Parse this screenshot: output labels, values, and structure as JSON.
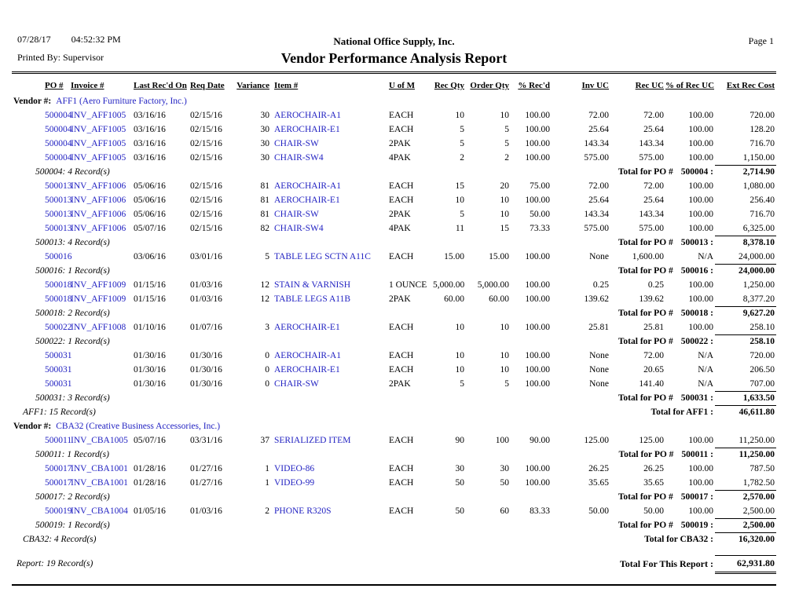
{
  "meta": {
    "date": "07/28/17",
    "time": "04:52:32 PM",
    "printed_by": "Printed By: Supervisor",
    "company": "National Office Supply, Inc.",
    "title": "Vendor Performance Analysis Report",
    "page": "Page 1"
  },
  "colors": {
    "link_blue": "#2222c2",
    "text": "#000000",
    "rule": "#000000"
  },
  "columns": [
    "PO #",
    "Invoice #",
    "Last Rec'd On",
    "Req Date",
    "Variance",
    "Item #",
    "U of M",
    "Rec Qty",
    "Order Qty",
    "% Rec'd",
    "Inv UC",
    "Rec UC",
    "% of Rec UC",
    "Ext Rec Cost"
  ],
  "rows": [
    {
      "type": "vendor",
      "label": "Vendor #:",
      "name": "AFF1 (Aero Furniture Factory, Inc.)"
    },
    {
      "type": "detail",
      "po": "500004",
      "invoice": "INV_AFF1005",
      "last_recd": "03/16/16",
      "req_date": "02/15/16",
      "variance": "30",
      "item": "AEROCHAIR-A1",
      "uom": "EACH",
      "rec_qty": "10",
      "order_qty": "10",
      "pct_recd": "100.00",
      "inv_uc": "72.00",
      "rec_uc": "72.00",
      "pct_rec_uc": "100.00",
      "ext": "720.00"
    },
    {
      "type": "detail",
      "po": "500004",
      "invoice": "INV_AFF1005",
      "last_recd": "03/16/16",
      "req_date": "02/15/16",
      "variance": "30",
      "item": "AEROCHAIR-E1",
      "uom": "EACH",
      "rec_qty": "5",
      "order_qty": "5",
      "pct_recd": "100.00",
      "inv_uc": "25.64",
      "rec_uc": "25.64",
      "pct_rec_uc": "100.00",
      "ext": "128.20"
    },
    {
      "type": "detail",
      "po": "500004",
      "invoice": "INV_AFF1005",
      "last_recd": "03/16/16",
      "req_date": "02/15/16",
      "variance": "30",
      "item": "CHAIR-SW",
      "uom": "2PAK",
      "rec_qty": "5",
      "order_qty": "5",
      "pct_recd": "100.00",
      "inv_uc": "143.34",
      "rec_uc": "143.34",
      "pct_rec_uc": "100.00",
      "ext": "716.70"
    },
    {
      "type": "detail",
      "po": "500004",
      "invoice": "INV_AFF1005",
      "last_recd": "03/16/16",
      "req_date": "02/15/16",
      "variance": "30",
      "item": "CHAIR-SW4",
      "uom": "4PAK",
      "rec_qty": "2",
      "order_qty": "2",
      "pct_recd": "100.00",
      "inv_uc": "575.00",
      "rec_uc": "575.00",
      "pct_rec_uc": "100.00",
      "ext": "1,150.00"
    },
    {
      "type": "po_total",
      "records": "500004: 4 Record(s)",
      "label": "Total for PO #",
      "po": "500004 :",
      "total": "2,714.90"
    },
    {
      "type": "detail",
      "po": "500013",
      "invoice": "INV_AFF1006",
      "last_recd": "05/06/16",
      "req_date": "02/15/16",
      "variance": "81",
      "item": "AEROCHAIR-A1",
      "uom": "EACH",
      "rec_qty": "15",
      "order_qty": "20",
      "pct_recd": "75.00",
      "inv_uc": "72.00",
      "rec_uc": "72.00",
      "pct_rec_uc": "100.00",
      "ext": "1,080.00"
    },
    {
      "type": "detail",
      "po": "500013",
      "invoice": "INV_AFF1006",
      "last_recd": "05/06/16",
      "req_date": "02/15/16",
      "variance": "81",
      "item": "AEROCHAIR-E1",
      "uom": "EACH",
      "rec_qty": "10",
      "order_qty": "10",
      "pct_recd": "100.00",
      "inv_uc": "25.64",
      "rec_uc": "25.64",
      "pct_rec_uc": "100.00",
      "ext": "256.40"
    },
    {
      "type": "detail",
      "po": "500013",
      "invoice": "INV_AFF1006",
      "last_recd": "05/06/16",
      "req_date": "02/15/16",
      "variance": "81",
      "item": "CHAIR-SW",
      "uom": "2PAK",
      "rec_qty": "5",
      "order_qty": "10",
      "pct_recd": "50.00",
      "inv_uc": "143.34",
      "rec_uc": "143.34",
      "pct_rec_uc": "100.00",
      "ext": "716.70"
    },
    {
      "type": "detail",
      "po": "500013",
      "invoice": "INV_AFF1006",
      "last_recd": "05/07/16",
      "req_date": "02/15/16",
      "variance": "82",
      "item": "CHAIR-SW4",
      "uom": "4PAK",
      "rec_qty": "11",
      "order_qty": "15",
      "pct_recd": "73.33",
      "inv_uc": "575.00",
      "rec_uc": "575.00",
      "pct_rec_uc": "100.00",
      "ext": "6,325.00"
    },
    {
      "type": "po_total",
      "records": "500013: 4 Record(s)",
      "label": "Total for PO #",
      "po": "500013 :",
      "total": "8,378.10"
    },
    {
      "type": "detail",
      "po": "500016",
      "invoice": "",
      "last_recd": "03/06/16",
      "req_date": "03/01/16",
      "variance": "5",
      "item": "TABLE LEG SCTN A11C",
      "uom": "EACH",
      "rec_qty": "15.00",
      "order_qty": "15.00",
      "pct_recd": "100.00",
      "inv_uc": "None",
      "rec_uc": "1,600.00",
      "pct_rec_uc": "N/A",
      "ext": "24,000.00"
    },
    {
      "type": "po_total",
      "records": "500016: 1 Record(s)",
      "label": "Total for PO #",
      "po": "500016 :",
      "total": "24,000.00"
    },
    {
      "type": "detail",
      "po": "500018",
      "invoice": "INV_AFF1009",
      "last_recd": "01/15/16",
      "req_date": "01/03/16",
      "variance": "12",
      "item": "STAIN & VARNISH",
      "uom": "1 OUNCE",
      "rec_qty": "5,000.00",
      "order_qty": "5,000.00",
      "pct_recd": "100.00",
      "inv_uc": "0.25",
      "rec_uc": "0.25",
      "pct_rec_uc": "100.00",
      "ext": "1,250.00"
    },
    {
      "type": "detail",
      "po": "500018",
      "invoice": "INV_AFF1009",
      "last_recd": "01/15/16",
      "req_date": "01/03/16",
      "variance": "12",
      "item": "TABLE LEGS A11B",
      "uom": "2PAK",
      "rec_qty": "60.00",
      "order_qty": "60.00",
      "pct_recd": "100.00",
      "inv_uc": "139.62",
      "rec_uc": "139.62",
      "pct_rec_uc": "100.00",
      "ext": "8,377.20"
    },
    {
      "type": "po_total",
      "records": "500018: 2 Record(s)",
      "label": "Total for PO #",
      "po": "500018 :",
      "total": "9,627.20"
    },
    {
      "type": "detail",
      "po": "500022",
      "invoice": "INV_AFF1008",
      "last_recd": "01/10/16",
      "req_date": "01/07/16",
      "variance": "3",
      "item": "AEROCHAIR-E1",
      "uom": "EACH",
      "rec_qty": "10",
      "order_qty": "10",
      "pct_recd": "100.00",
      "inv_uc": "25.81",
      "rec_uc": "25.81",
      "pct_rec_uc": "100.00",
      "ext": "258.10"
    },
    {
      "type": "po_total",
      "records": "500022: 1 Record(s)",
      "label": "Total for PO #",
      "po": "500022 :",
      "total": "258.10"
    },
    {
      "type": "detail",
      "po": "500031",
      "invoice": "",
      "last_recd": "01/30/16",
      "req_date": "01/30/16",
      "variance": "0",
      "item": "AEROCHAIR-A1",
      "uom": "EACH",
      "rec_qty": "10",
      "order_qty": "10",
      "pct_recd": "100.00",
      "inv_uc": "None",
      "rec_uc": "72.00",
      "pct_rec_uc": "N/A",
      "ext": "720.00"
    },
    {
      "type": "detail",
      "po": "500031",
      "invoice": "",
      "last_recd": "01/30/16",
      "req_date": "01/30/16",
      "variance": "0",
      "item": "AEROCHAIR-E1",
      "uom": "EACH",
      "rec_qty": "10",
      "order_qty": "10",
      "pct_recd": "100.00",
      "inv_uc": "None",
      "rec_uc": "20.65",
      "pct_rec_uc": "N/A",
      "ext": "206.50"
    },
    {
      "type": "detail",
      "po": "500031",
      "invoice": "",
      "last_recd": "01/30/16",
      "req_date": "01/30/16",
      "variance": "0",
      "item": "CHAIR-SW",
      "uom": "2PAK",
      "rec_qty": "5",
      "order_qty": "5",
      "pct_recd": "100.00",
      "inv_uc": "None",
      "rec_uc": "141.40",
      "pct_rec_uc": "N/A",
      "ext": "707.00"
    },
    {
      "type": "po_total",
      "records": "500031: 3 Record(s)",
      "label": "Total for PO #",
      "po": "500031 :",
      "total": "1,633.50"
    },
    {
      "type": "vendor_total",
      "records": "AFF1: 15 Record(s)",
      "label": "Total for AFF1 :",
      "total": "46,611.80"
    },
    {
      "type": "vendor",
      "label": "Vendor #:",
      "name": "CBA32 (Creative Business Accessories, Inc.)"
    },
    {
      "type": "detail",
      "po": "500011",
      "invoice": "INV_CBA1005",
      "last_recd": "05/07/16",
      "req_date": "03/31/16",
      "variance": "37",
      "item": "SERIALIZED ITEM",
      "uom": "EACH",
      "rec_qty": "90",
      "order_qty": "100",
      "pct_recd": "90.00",
      "inv_uc": "125.00",
      "rec_uc": "125.00",
      "pct_rec_uc": "100.00",
      "ext": "11,250.00"
    },
    {
      "type": "po_total",
      "records": "500011: 1 Record(s)",
      "label": "Total for PO #",
      "po": "500011 :",
      "total": "11,250.00"
    },
    {
      "type": "detail",
      "po": "500017",
      "invoice": "INV_CBA1001",
      "last_recd": "01/28/16",
      "req_date": "01/27/16",
      "variance": "1",
      "item": "VIDEO-86",
      "uom": "EACH",
      "rec_qty": "30",
      "order_qty": "30",
      "pct_recd": "100.00",
      "inv_uc": "26.25",
      "rec_uc": "26.25",
      "pct_rec_uc": "100.00",
      "ext": "787.50"
    },
    {
      "type": "detail",
      "po": "500017",
      "invoice": "INV_CBA1001",
      "last_recd": "01/28/16",
      "req_date": "01/27/16",
      "variance": "1",
      "item": "VIDEO-99",
      "uom": "EACH",
      "rec_qty": "50",
      "order_qty": "50",
      "pct_recd": "100.00",
      "inv_uc": "35.65",
      "rec_uc": "35.65",
      "pct_rec_uc": "100.00",
      "ext": "1,782.50"
    },
    {
      "type": "po_total",
      "records": "500017: 2 Record(s)",
      "label": "Total for PO #",
      "po": "500017 :",
      "total": "2,570.00"
    },
    {
      "type": "detail",
      "po": "500019",
      "invoice": "INV_CBA1004",
      "last_recd": "01/05/16",
      "req_date": "01/03/16",
      "variance": "2",
      "item": "PHONE R320S",
      "uom": "EACH",
      "rec_qty": "50",
      "order_qty": "60",
      "pct_recd": "83.33",
      "inv_uc": "50.00",
      "rec_uc": "50.00",
      "pct_rec_uc": "100.00",
      "ext": "2,500.00"
    },
    {
      "type": "po_total",
      "records": "500019: 1 Record(s)",
      "label": "Total for PO #",
      "po": "500019 :",
      "total": "2,500.00"
    },
    {
      "type": "vendor_total",
      "records": "CBA32: 4 Record(s)",
      "label": "Total for CBA32 :",
      "total": "16,320.00"
    },
    {
      "type": "spacer"
    },
    {
      "type": "report_total",
      "records": "Report: 19 Record(s)",
      "label": "Total For This Report :",
      "total": "62,931.80"
    }
  ]
}
